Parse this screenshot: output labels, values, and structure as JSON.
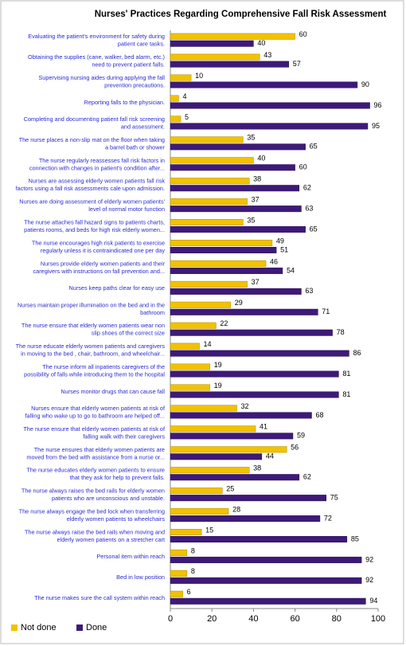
{
  "chart_data": {
    "type": "hbar",
    "title": "Nurses' Practices Regarding Comprehensive Fall Risk Assessment",
    "categories": [
      [
        "Evaluating the patient's environment for safety during",
        "patient care tasks."
      ],
      [
        "Obtaining the supplies (cane, walker, bed alarm, etc.)",
        "need to prevent patient falls."
      ],
      [
        "Supervising nursing aides during applying the fall",
        "prevention precautions."
      ],
      [
        "Reporting falls to the physician."
      ],
      [
        "Completing and documenting patient fall risk screening",
        "and assessment."
      ],
      [
        "The nurse places a non-slip mat on the floor when taking",
        "a barrel bath or shower"
      ],
      [
        "The nurse regularly reassesses fall risk factors in",
        "connection with changes in patient's condition after..."
      ],
      [
        "Nurses are assessing elderly women patients fall risk",
        "factors using a fall risk assessments cale upon admission."
      ],
      [
        "Nurses are doing assessment of elderly women patients'",
        "level of normal motor function"
      ],
      [
        "The nurse attaches fall hazard signs to patients charts,",
        "patients rooms, and beds for high risk elderly women..."
      ],
      [
        "The nurse encourages high risk patients to exercise",
        "regularly unless it is contraindicated one per day"
      ],
      [
        "Nurses provide elderly women patients and their",
        "caregivers with instructions on fall prevention and..."
      ],
      [
        "Nurses keep paths clear for easy use"
      ],
      [
        "Nurses maintain proper illumination on the bed and in the",
        "bathroom"
      ],
      [
        "The nurse ensure that elderly women patients wear non",
        "slip shoes of the correct size"
      ],
      [
        "The nurse educate elderly women patients and caregivers",
        "in moving to the bed , chair, bathroom, and wheelchair..."
      ],
      [
        "The nurse inform all inpatients caregivers of the",
        "possibility of falls while introducing them to the hospital"
      ],
      [
        "Nurses monitor drugs that can cause fall"
      ],
      [
        "Nurses ensure that elderly women patients at risk of",
        "falling who wake up to go to bathroom are helped off..."
      ],
      [
        "The nurse ensure that elderly women patients at risk of",
        "falling walk with their caregivers"
      ],
      [
        "The nurse ensures that elderly women patients are",
        "moved from the bed with assistance from a nurse or..."
      ],
      [
        "The nurse educates elderly women patients to ensure",
        "that they ask for help to prevent falls."
      ],
      [
        "The nurse always raises the bed rails for elderly women",
        "patients who are unconscious and unstable."
      ],
      [
        "The nurse always engage the bed lock when transferring",
        "elderly women patients to wheelchairs"
      ],
      [
        "The nurse always raise the bed rails when moving and",
        "elderly women patients on a stretcher cart"
      ],
      [
        "Personal item within reach"
      ],
      [
        "Bed in low position"
      ],
      [
        "The nurse makes sure the call system within reach"
      ]
    ],
    "series": [
      {
        "name": "Not done",
        "color": "#f2c200",
        "values": [
          60,
          43,
          10,
          4,
          5,
          35,
          40,
          38,
          37,
          35,
          49,
          46,
          37,
          29,
          22,
          14,
          19,
          19,
          32,
          41,
          56,
          38,
          25,
          28,
          15,
          8,
          8,
          6
        ]
      },
      {
        "name": "Done",
        "color": "#3d1a78",
        "values": [
          40,
          57,
          90,
          96,
          95,
          65,
          60,
          62,
          63,
          65,
          51,
          54,
          63,
          71,
          78,
          86,
          81,
          81,
          68,
          59,
          44,
          62,
          75,
          72,
          85,
          92,
          92,
          94
        ]
      }
    ],
    "xlim": [
      0,
      100
    ],
    "xticks": [
      0,
      20,
      40,
      60,
      80,
      100
    ],
    "grid": false
  }
}
